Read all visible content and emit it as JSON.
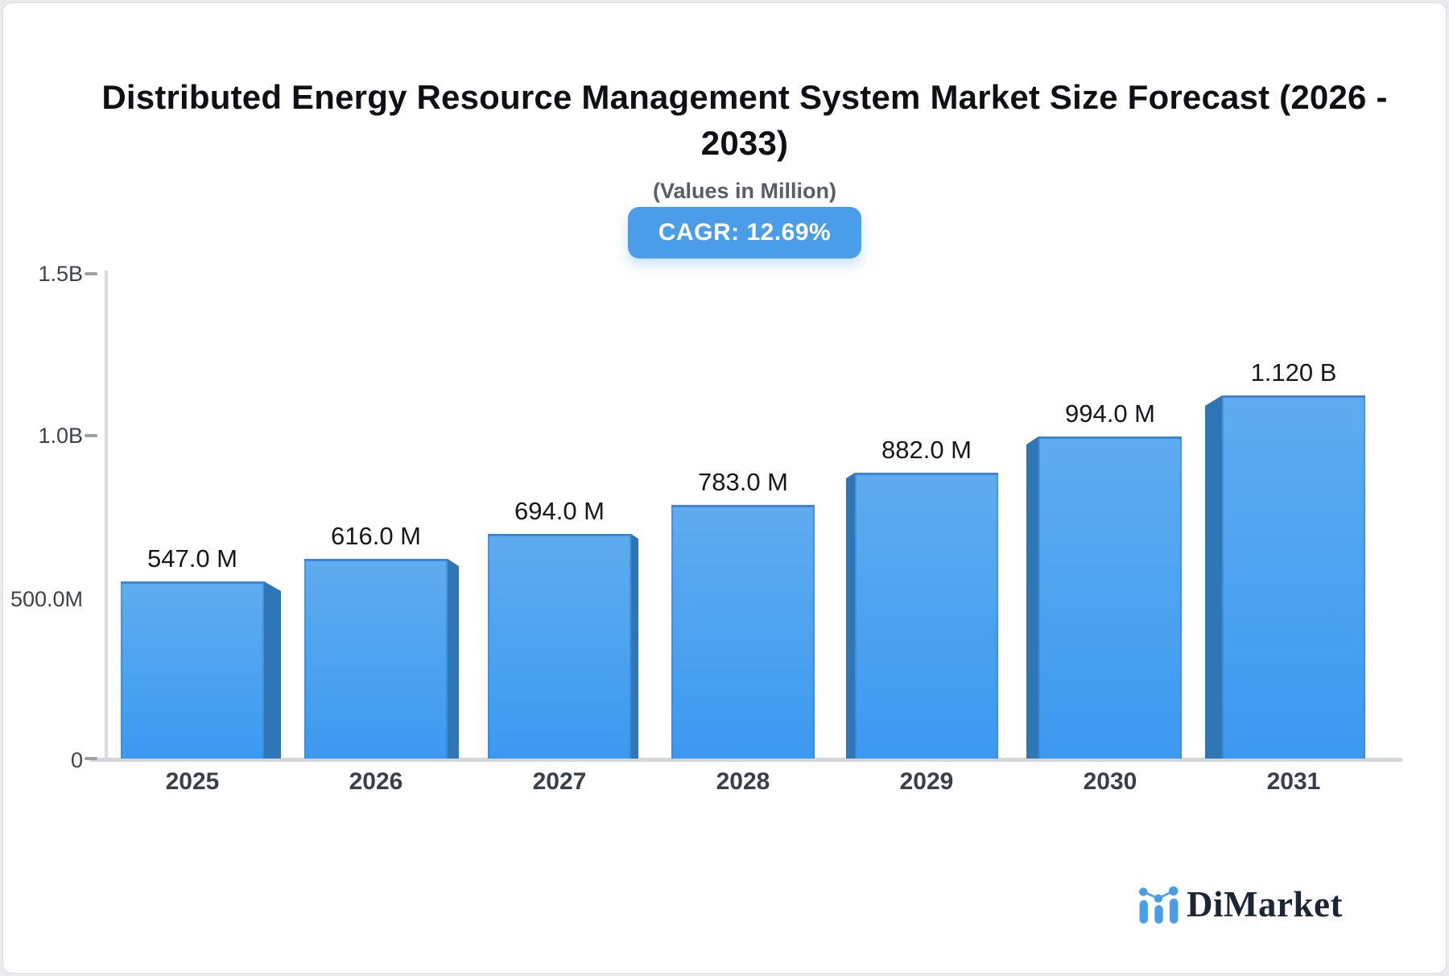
{
  "header": {
    "title_lines": [
      "Distributed Energy Resource Management System Market Size Forecast (2026 -",
      "2033)"
    ],
    "subtitle": "(Values in Million)",
    "cagr_badge": "CAGR: 12.69%"
  },
  "chart_data": {
    "type": "bar",
    "title": "Distributed Energy Resource Management System Market Size Forecast (2026 - 2033)",
    "subtitle": "(Values in Million)",
    "cagr_percent": 12.69,
    "categories": [
      "2025",
      "2026",
      "2027",
      "2028",
      "2029",
      "2030",
      "2031"
    ],
    "values_millions": [
      547,
      616,
      694,
      783,
      882,
      994,
      1120
    ],
    "value_labels": [
      "547.0 M",
      "616.0 M",
      "694.0 M",
      "783.0 M",
      "882.0 M",
      "994.0 M",
      "1.120 B"
    ],
    "xlabel": "",
    "ylabel": "",
    "ylim": [
      0,
      1500000000
    ],
    "grid": false,
    "legend": false,
    "y_axis": {
      "ticks": [
        {
          "label": "1.5B",
          "value_millions": 1500
        },
        {
          "label": "1.0B",
          "value_millions": 1000
        },
        {
          "label": "500.0M",
          "value_millions": 500
        },
        {
          "label": "0",
          "value_millions": 0
        }
      ]
    },
    "bar_style": "3d-perspective"
  },
  "colors": {
    "accent_blue": "#4A9EE9",
    "bar_gradient_top": "#5FABEF",
    "bar_gradient_bottom": "#3D99F0",
    "bar_side_face": "#2E76B6",
    "bar_top_edge": "#3F85D3",
    "axis_line": "#d3d6db",
    "tick_text": "#3b424c",
    "title_text": "#0d1015",
    "subtitle_text": "#575e68",
    "brand_navy": "#1b2735"
  },
  "footer": {
    "brand": "DiMarket"
  }
}
